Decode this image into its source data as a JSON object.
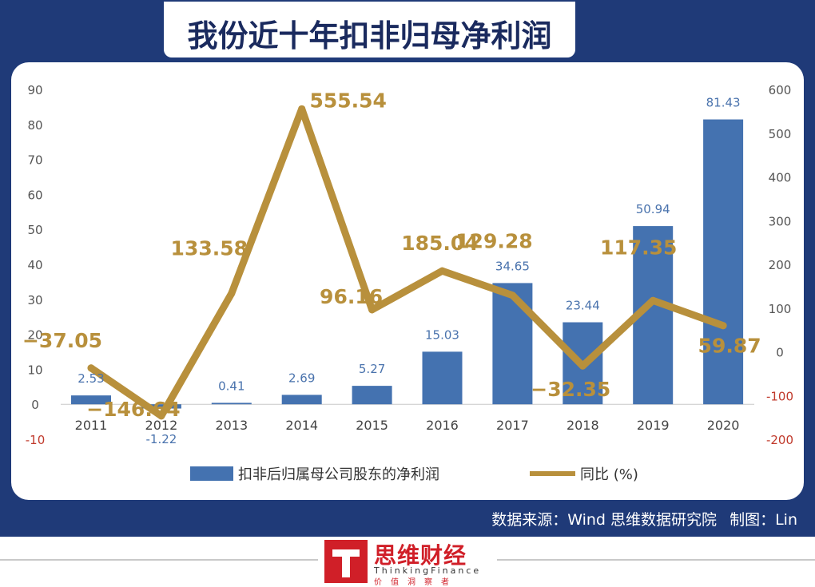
{
  "title": "我份近十年扣非归母净利润",
  "source": {
    "label": "数据来源：Wind  思维数据研究院",
    "maker": "制图：Lin"
  },
  "logo": {
    "name": "思维财经",
    "english": "ThinkingFinance",
    "tagline": "价值洞察者"
  },
  "chart_data": {
    "type": "bar",
    "categories": [
      "2011",
      "2012",
      "2013",
      "2014",
      "2015",
      "2016",
      "2017",
      "2018",
      "2019",
      "2020"
    ],
    "series": [
      {
        "name": "扣非后归属母公司股东的净利润",
        "type": "bar",
        "axis": "left",
        "values": [
          2.53,
          -1.22,
          0.41,
          2.69,
          5.27,
          15.03,
          34.65,
          23.44,
          50.94,
          81.43
        ],
        "color": "#4472b0"
      },
      {
        "name": "同比 (%)",
        "type": "line",
        "axis": "right",
        "values": [
          -37.05,
          -146.64,
          133.58,
          555.54,
          96.16,
          185.04,
          129.28,
          -32.35,
          117.35,
          59.87
        ],
        "color": "#b8903c"
      }
    ],
    "bar_labels": [
      "2.53",
      "-1.22",
      "0.41",
      "2.69",
      "5.27",
      "15.03",
      "34.65",
      "23.44",
      "50.94",
      "81.43"
    ],
    "line_labels": [
      "-37.05",
      "-146.64",
      "133.58",
      "555.54",
      "96.16",
      "185.04",
      "129.28",
      "-32.35",
      "117.35",
      "59.87"
    ],
    "y_left": {
      "ticks": [
        "90",
        "80",
        "70",
        "60",
        "50",
        "40",
        "30",
        "20",
        "10",
        "0",
        "-10"
      ],
      "ylim": [
        -10,
        90
      ]
    },
    "y_right": {
      "ticks": [
        "600",
        "500",
        "400",
        "300",
        "200",
        "100",
        "0",
        "-100",
        "-200"
      ],
      "ylim": [
        -200,
        600
      ]
    },
    "grid": false,
    "legend": "bottom",
    "negative_tick_color": "#c0392b",
    "tick_color": "#555555"
  }
}
